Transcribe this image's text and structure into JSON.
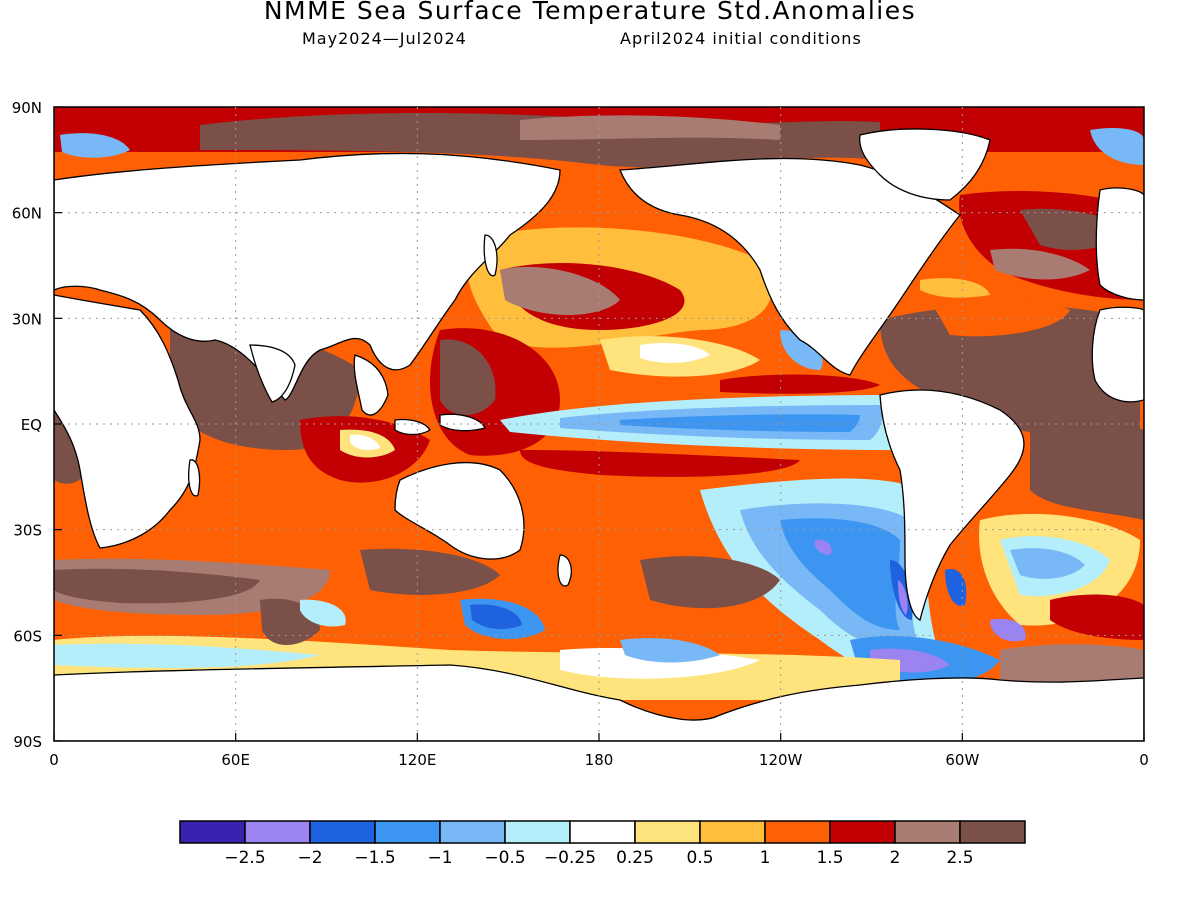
{
  "title": "NMME Sea Surface Temperature Std.Anomalies",
  "subtitle_left": "May2024—Jul2024",
  "subtitle_right": "April2024 initial conditions",
  "lat_labels": [
    "90N",
    "60N",
    "30N",
    "EQ",
    "30S",
    "60S",
    "90S"
  ],
  "lon_labels": [
    "0",
    "60E",
    "120E",
    "180",
    "120W",
    "60W",
    "0"
  ],
  "colorbar": {
    "colors": [
      "#3a22b0",
      "#9b83f2",
      "#1f62e0",
      "#3c96f1",
      "#78b8f6",
      "#b4eefb",
      "#ffffff",
      "#ffe47e",
      "#ffbe3c",
      "#ff6004",
      "#c20003",
      "#a97c73",
      "#7a5048"
    ],
    "labels": [
      "−2.5",
      "−2",
      "−1.5",
      "−1",
      "−0.5",
      "−0.25",
      "0.25",
      "0.5",
      "1",
      "1.5",
      "2",
      "2.5"
    ]
  },
  "colors": {
    "land": "#ffffff",
    "coastline": "#000000",
    "gridline": "#9a9a9a"
  }
}
